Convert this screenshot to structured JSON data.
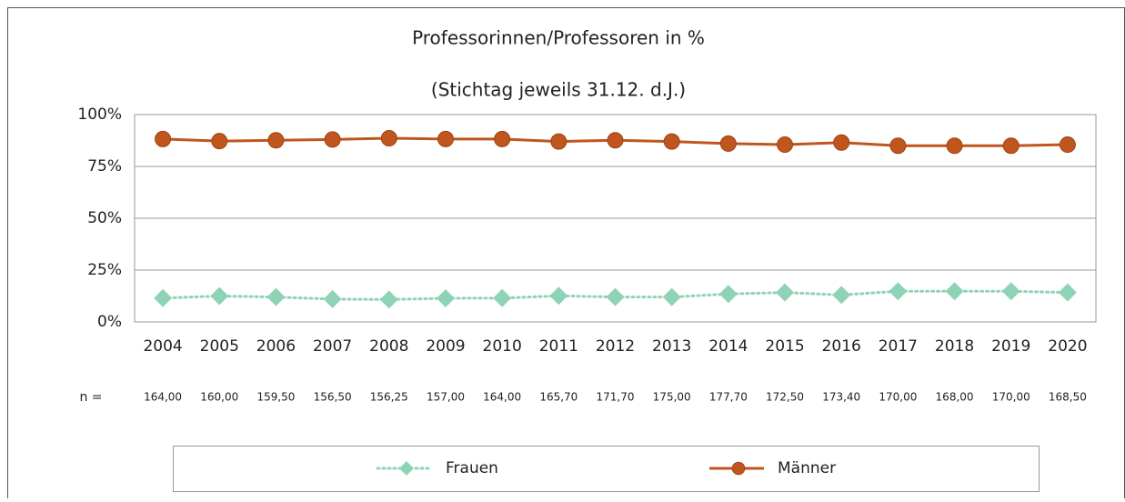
{
  "chart_data": {
    "type": "line",
    "title": "Professorinnen/Professoren in %",
    "subtitle": "(Stichtag jeweils 31.12. d.J.)",
    "categories": [
      "2004",
      "2005",
      "2006",
      "2007",
      "2008",
      "2009",
      "2010",
      "2011",
      "2012",
      "2013",
      "2014",
      "2015",
      "2016",
      "2017",
      "2018",
      "2019",
      "2020"
    ],
    "n_label": "n =",
    "n_values": [
      "164,00",
      "160,00",
      "159,50",
      "156,50",
      "156,25",
      "157,00",
      "164,00",
      "165,70",
      "171,70",
      "175,00",
      "177,70",
      "172,50",
      "173,40",
      "170,00",
      "168,00",
      "170,00",
      "168,50"
    ],
    "series": [
      {
        "name": "Frauen",
        "color": "#8fd3b6",
        "marker": "diamond",
        "style": "dotted",
        "values": [
          11.5,
          12.5,
          12,
          11,
          10.8,
          11.4,
          11.5,
          12.6,
          12,
          12,
          13.5,
          14.2,
          13,
          14.8,
          14.8,
          14.8,
          14.2
        ]
      },
      {
        "name": "Männer",
        "color": "#c0561e",
        "marker": "circle",
        "style": "solid",
        "values": [
          88.2,
          87.2,
          87.6,
          88,
          88.6,
          88.2,
          88.2,
          87,
          87.6,
          87,
          86,
          85.5,
          86.5,
          85,
          85,
          85,
          85.5
        ]
      }
    ],
    "ylim": [
      0,
      100
    ],
    "yticks": [
      {
        "value": 0,
        "label": "0%"
      },
      {
        "value": 25,
        "label": "25%"
      },
      {
        "value": 50,
        "label": "50%"
      },
      {
        "value": 75,
        "label": "75%"
      },
      {
        "value": 100,
        "label": "100%"
      }
    ],
    "grid": true,
    "legend": "bottom"
  }
}
